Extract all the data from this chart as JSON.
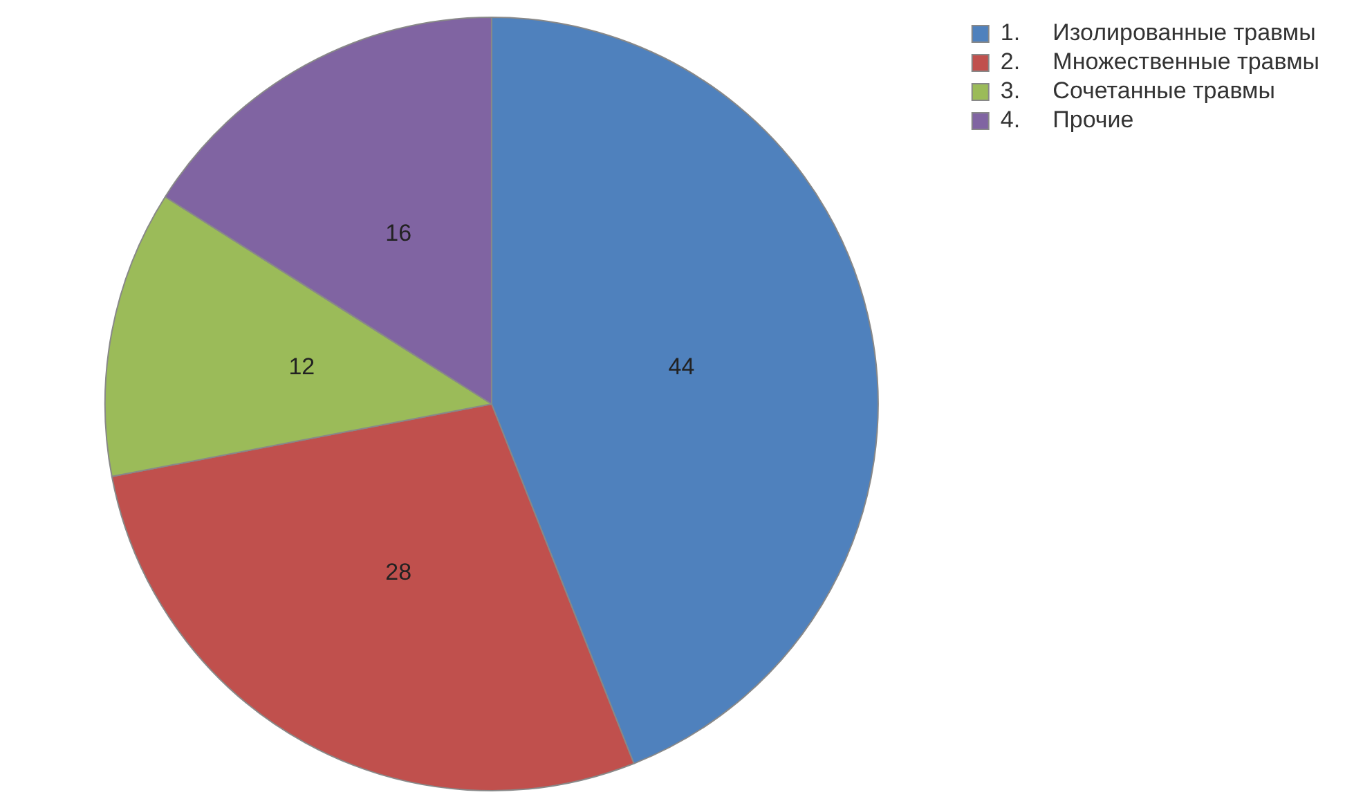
{
  "chart_data": {
    "type": "pie",
    "categories": [
      "1.     Изолированные травмы",
      "2.     Множественные травмы",
      "3.     Сочетанные травмы",
      "4.     Прочие"
    ],
    "values": [
      44,
      28,
      12,
      16
    ],
    "colors": [
      "#4f81bd",
      "#c0504d",
      "#9bbb59",
      "#8064a2"
    ],
    "data_labels": true,
    "legend": "top right"
  }
}
